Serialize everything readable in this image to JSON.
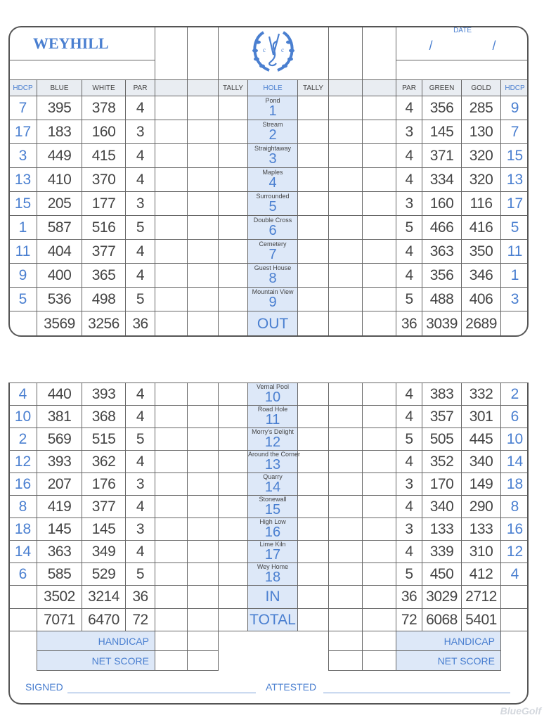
{
  "course_name": "WEYHILL",
  "date_label": "DATE",
  "date_slashes": "/ /",
  "headers": {
    "hdcp": "HDCP",
    "blue": "BLUE",
    "white": "WHITE",
    "par": "PAR",
    "tally": "TALLY",
    "hole": "HOLE",
    "green": "GREEN",
    "gold": "GOLD"
  },
  "front_nine": [
    {
      "hdcp": "7",
      "blue": "395",
      "white": "378",
      "par": "4",
      "name": "Pond",
      "hole": "1",
      "par_r": "4",
      "green": "356",
      "gold": "285",
      "hdcp_r": "9"
    },
    {
      "hdcp": "17",
      "blue": "183",
      "white": "160",
      "par": "3",
      "name": "Stream",
      "hole": "2",
      "par_r": "3",
      "green": "145",
      "gold": "130",
      "hdcp_r": "7"
    },
    {
      "hdcp": "3",
      "blue": "449",
      "white": "415",
      "par": "4",
      "name": "Straightaway",
      "hole": "3",
      "par_r": "4",
      "green": "371",
      "gold": "320",
      "hdcp_r": "15"
    },
    {
      "hdcp": "13",
      "blue": "410",
      "white": "370",
      "par": "4",
      "name": "Maples",
      "hole": "4",
      "par_r": "4",
      "green": "334",
      "gold": "320",
      "hdcp_r": "13"
    },
    {
      "hdcp": "15",
      "blue": "205",
      "white": "177",
      "par": "3",
      "name": "Surrounded",
      "hole": "5",
      "par_r": "3",
      "green": "160",
      "gold": "116",
      "hdcp_r": "17"
    },
    {
      "hdcp": "1",
      "blue": "587",
      "white": "516",
      "par": "5",
      "name": "Double Cross",
      "hole": "6",
      "par_r": "5",
      "green": "466",
      "gold": "416",
      "hdcp_r": "5"
    },
    {
      "hdcp": "11",
      "blue": "404",
      "white": "377",
      "par": "4",
      "name": "Cemetery",
      "hole": "7",
      "par_r": "4",
      "green": "363",
      "gold": "350",
      "hdcp_r": "11"
    },
    {
      "hdcp": "9",
      "blue": "400",
      "white": "365",
      "par": "4",
      "name": "Guest House",
      "hole": "8",
      "par_r": "4",
      "green": "356",
      "gold": "346",
      "hdcp_r": "1"
    },
    {
      "hdcp": "5",
      "blue": "536",
      "white": "498",
      "par": "5",
      "name": "Mountain View",
      "hole": "9",
      "par_r": "5",
      "green": "488",
      "gold": "406",
      "hdcp_r": "3"
    }
  ],
  "out_row": {
    "label": "OUT",
    "blue": "3569",
    "white": "3256",
    "par": "36",
    "par_r": "36",
    "green": "3039",
    "gold": "2689"
  },
  "back_nine": [
    {
      "hdcp": "4",
      "blue": "440",
      "white": "393",
      "par": "4",
      "name": "Vernal Pool",
      "hole": "10",
      "par_r": "4",
      "green": "383",
      "gold": "332",
      "hdcp_r": "2"
    },
    {
      "hdcp": "10",
      "blue": "381",
      "white": "368",
      "par": "4",
      "name": "Road Hole",
      "hole": "11",
      "par_r": "4",
      "green": "357",
      "gold": "301",
      "hdcp_r": "6"
    },
    {
      "hdcp": "2",
      "blue": "569",
      "white": "515",
      "par": "5",
      "name": "Morry's Delight",
      "hole": "12",
      "par_r": "5",
      "green": "505",
      "gold": "445",
      "hdcp_r": "10"
    },
    {
      "hdcp": "12",
      "blue": "393",
      "white": "362",
      "par": "4",
      "name": "Around the Corner",
      "hole": "13",
      "par_r": "4",
      "green": "352",
      "gold": "340",
      "hdcp_r": "14"
    },
    {
      "hdcp": "16",
      "blue": "207",
      "white": "176",
      "par": "3",
      "name": "Quarry",
      "hole": "14",
      "par_r": "3",
      "green": "170",
      "gold": "149",
      "hdcp_r": "18"
    },
    {
      "hdcp": "8",
      "blue": "419",
      "white": "377",
      "par": "4",
      "name": "Stonewall",
      "hole": "15",
      "par_r": "4",
      "green": "340",
      "gold": "290",
      "hdcp_r": "8"
    },
    {
      "hdcp": "18",
      "blue": "145",
      "white": "145",
      "par": "3",
      "name": "High Low",
      "hole": "16",
      "par_r": "3",
      "green": "133",
      "gold": "133",
      "hdcp_r": "16"
    },
    {
      "hdcp": "14",
      "blue": "363",
      "white": "349",
      "par": "4",
      "name": "Lime Kiln",
      "hole": "17",
      "par_r": "4",
      "green": "339",
      "gold": "310",
      "hdcp_r": "12"
    },
    {
      "hdcp": "6",
      "blue": "585",
      "white": "529",
      "par": "5",
      "name": "Wey Home",
      "hole": "18",
      "par_r": "5",
      "green": "450",
      "gold": "412",
      "hdcp_r": "4"
    }
  ],
  "in_row": {
    "label": "IN",
    "blue": "3502",
    "white": "3214",
    "par": "36",
    "par_r": "36",
    "green": "3029",
    "gold": "2712"
  },
  "total_row": {
    "label": "TOTAL",
    "blue": "7071",
    "white": "6470",
    "par": "72",
    "par_r": "72",
    "green": "6068",
    "gold": "5401"
  },
  "handicap_label": "HANDICAP",
  "net_score_label": "NET SCORE",
  "signed_label": "SIGNED",
  "attested_label": "ATTESTED",
  "watermark": "BlueGolf",
  "colors": {
    "accent": "#4a7fd0",
    "fill": "#dde8f8",
    "line": "#666666"
  }
}
